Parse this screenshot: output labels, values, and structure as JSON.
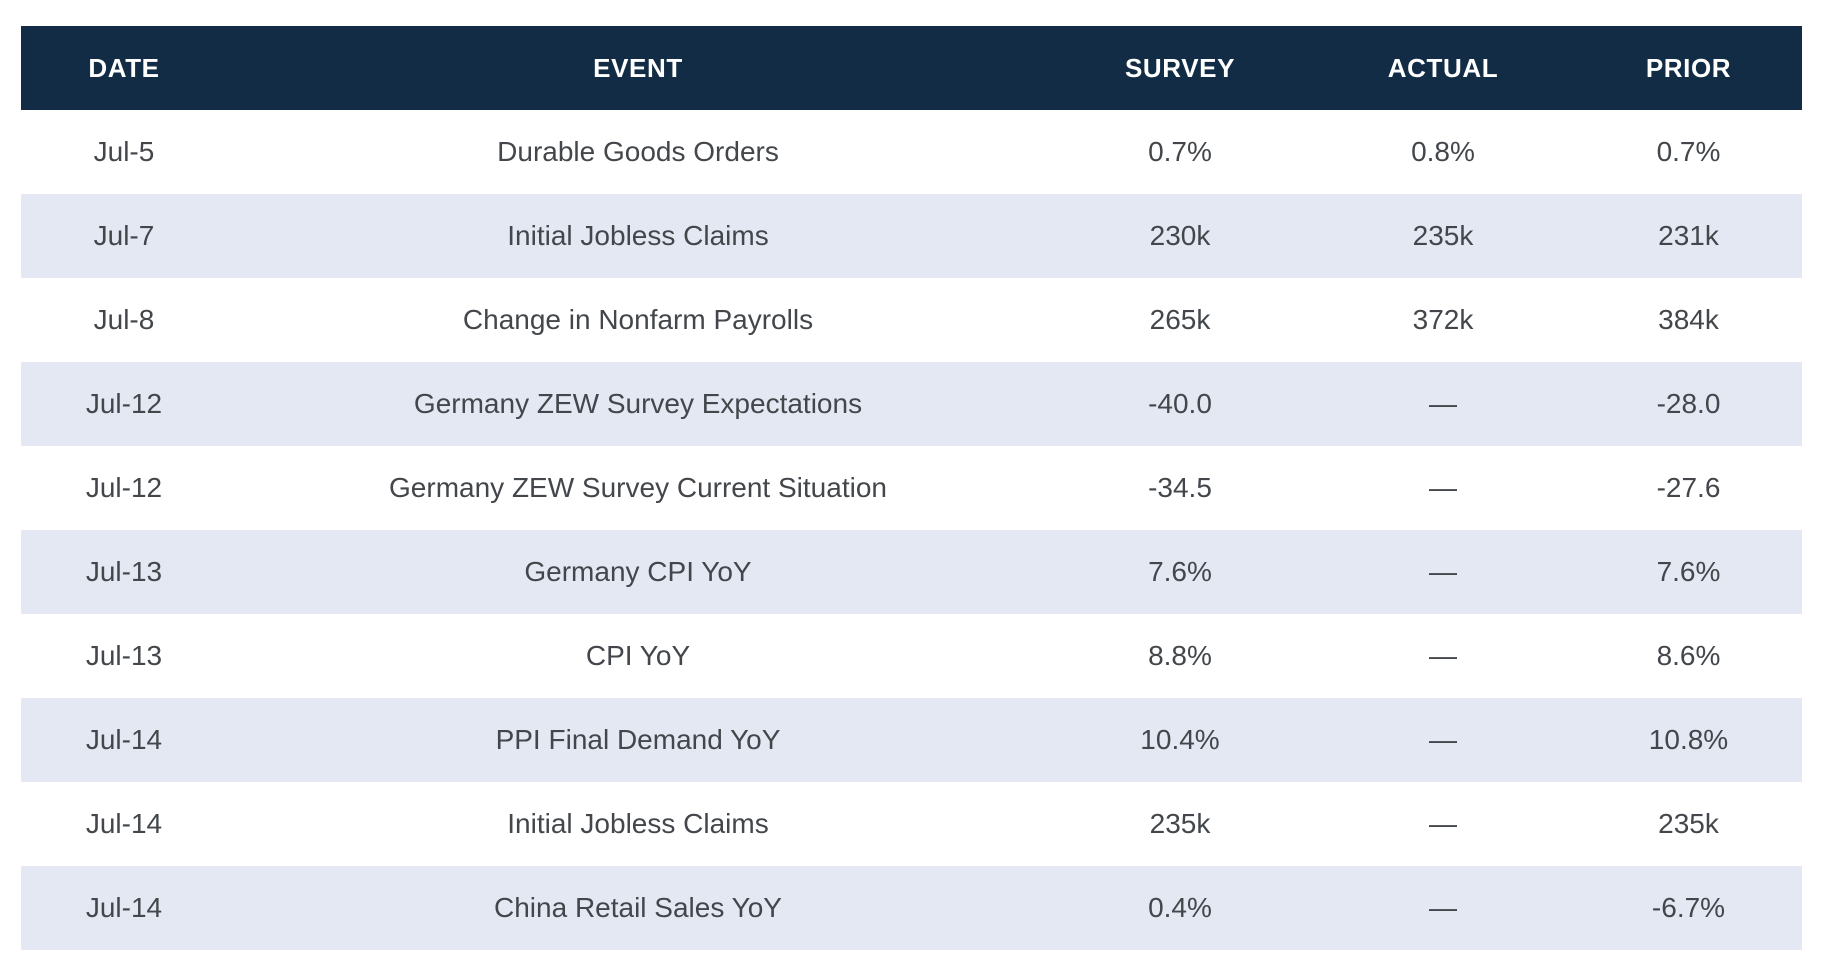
{
  "colors": {
    "header_background": "#122C45",
    "header_text": "#FFFFFF",
    "stripe_row_background": "#E4E8F3",
    "body_text": "#43474B",
    "page_background": "#FFFFFF"
  },
  "table": {
    "columns": [
      {
        "label": "DATE"
      },
      {
        "label": "EVENT"
      },
      {
        "label": "SURVEY"
      },
      {
        "label": "ACTUAL"
      },
      {
        "label": "PRIOR"
      }
    ],
    "rows": [
      {
        "date": "Jul-5",
        "event": "Durable Goods Orders",
        "survey": "0.7%",
        "actual": "0.8%",
        "prior": "0.7%"
      },
      {
        "date": "Jul-7",
        "event": "Initial Jobless Claims",
        "survey": "230k",
        "actual": "235k",
        "prior": "231k"
      },
      {
        "date": "Jul-8",
        "event": "Change in Nonfarm Payrolls",
        "survey": "265k",
        "actual": "372k",
        "prior": "384k"
      },
      {
        "date": "Jul-12",
        "event": "Germany ZEW Survey Expectations",
        "survey": "-40.0",
        "actual": "—",
        "prior": "-28.0"
      },
      {
        "date": "Jul-12",
        "event": "Germany ZEW Survey Current Situation",
        "survey": "-34.5",
        "actual": "—",
        "prior": "-27.6"
      },
      {
        "date": "Jul-13",
        "event": "Germany CPI YoY",
        "survey": "7.6%",
        "actual": "—",
        "prior": "7.6%"
      },
      {
        "date": "Jul-13",
        "event": "CPI YoY",
        "survey": "8.8%",
        "actual": "—",
        "prior": "8.6%"
      },
      {
        "date": "Jul-14",
        "event": "PPI Final Demand YoY",
        "survey": "10.4%",
        "actual": "—",
        "prior": "10.8%"
      },
      {
        "date": "Jul-14",
        "event": "Initial Jobless Claims",
        "survey": "235k",
        "actual": "—",
        "prior": "235k"
      },
      {
        "date": "Jul-14",
        "event": "China Retail Sales YoY",
        "survey": "0.4%",
        "actual": "—",
        "prior": "-6.7%"
      }
    ]
  },
  "chart_data": {
    "type": "table",
    "columns": [
      "DATE",
      "EVENT",
      "SURVEY",
      "ACTUAL",
      "PRIOR"
    ],
    "rows": [
      [
        "Jul-5",
        "Durable Goods Orders",
        "0.7%",
        "0.8%",
        "0.7%"
      ],
      [
        "Jul-7",
        "Initial Jobless Claims",
        "230k",
        "235k",
        "231k"
      ],
      [
        "Jul-8",
        "Change in Nonfarm Payrolls",
        "265k",
        "372k",
        "384k"
      ],
      [
        "Jul-12",
        "Germany ZEW Survey Expectations",
        "-40.0",
        "—",
        "-28.0"
      ],
      [
        "Jul-12",
        "Germany ZEW Survey Current Situation",
        "-34.5",
        "—",
        "-27.6"
      ],
      [
        "Jul-13",
        "Germany CPI YoY",
        "7.6%",
        "—",
        "7.6%"
      ],
      [
        "Jul-13",
        "CPI YoY",
        "8.8%",
        "—",
        "8.6%"
      ],
      [
        "Jul-14",
        "PPI Final Demand YoY",
        "10.4%",
        "—",
        "10.8%"
      ],
      [
        "Jul-14",
        "Initial Jobless Claims",
        "235k",
        "—",
        "235k"
      ],
      [
        "Jul-14",
        "China Retail Sales YoY",
        "0.4%",
        "—",
        "-6.7%"
      ]
    ],
    "layout": {
      "header_style": "dark navy band, white bold uppercase labels, centered",
      "row_striping": "even data rows white, odd data rows light periwinkle",
      "alignment": "all columns center-aligned",
      "gridlines": "none"
    }
  }
}
